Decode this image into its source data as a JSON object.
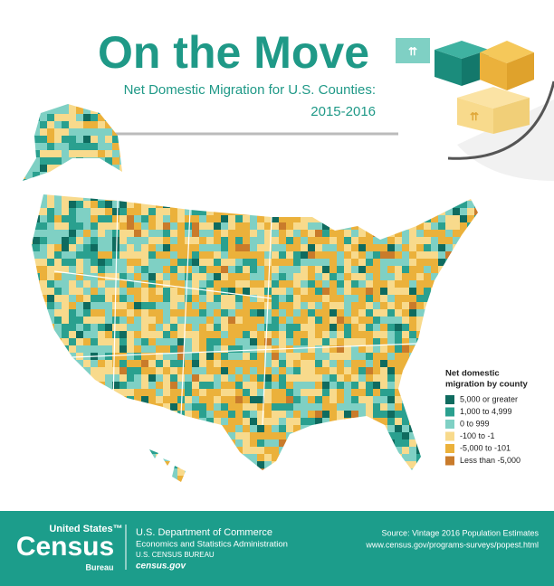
{
  "header": {
    "title": "On the Move",
    "subtitle_line1": "Net Domestic Migration for U.S. Counties:",
    "subtitle_line2": "2015-2016"
  },
  "legend": {
    "title_lines": [
      "Net domestic",
      "migration by county"
    ],
    "items": [
      {
        "label": "5,000 or greater",
        "color": "#0f6b5f"
      },
      {
        "label": "1,000 to 4,999",
        "color": "#2aa08f"
      },
      {
        "label": "0 to 999",
        "color": "#7fd0c4"
      },
      {
        "label": "-100 to -1",
        "color": "#f8da8c"
      },
      {
        "label": "-5,000 to -101",
        "color": "#ebb13b"
      },
      {
        "label": "Less than -5,000",
        "color": "#c97b2b"
      }
    ]
  },
  "footer": {
    "logo_top": "United States™",
    "logo_main": "Census",
    "logo_bottom": "Bureau",
    "dept": "U.S. Department of Commerce",
    "admin": "Economics and Statistics Administration",
    "bureau": "U.S. CENSUS BUREAU",
    "site": "census.gov",
    "source": "Source: Vintage 2016 Population Estimates",
    "url": "www.census.gov/programs-surveys/popest.html"
  }
}
